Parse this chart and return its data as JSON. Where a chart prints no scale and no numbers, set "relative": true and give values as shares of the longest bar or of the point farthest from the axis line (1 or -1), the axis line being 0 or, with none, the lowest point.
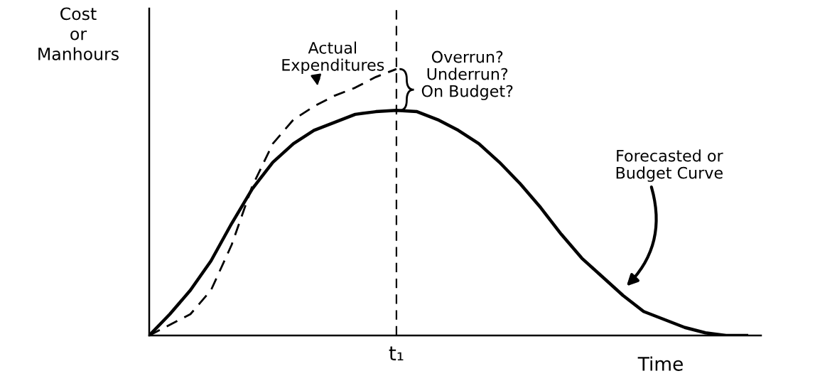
{
  "chart_data": {
    "type": "line",
    "relative": true,
    "ylabel": "Cost\nor\nManhours",
    "xlabel": "Time",
    "categories": [
      null,
      null,
      null,
      null,
      null,
      null,
      null,
      null,
      null,
      null,
      null,
      null,
      null,
      null,
      null,
      null,
      null,
      null,
      null,
      null,
      null,
      null,
      null,
      null,
      null,
      null,
      null,
      null,
      null,
      null
    ],
    "series": [
      {
        "color": "#000000",
        "line_style": "solid",
        "values": [
          0,
          0.08,
          0.17,
          0.28,
          0.42,
          0.55,
          0.65,
          0.72,
          0.77,
          0.8,
          0.83,
          0.84,
          0.845,
          0.84,
          0.81,
          0.77,
          0.72,
          0.65,
          0.57,
          0.48,
          0.38,
          0.29,
          0.22,
          0.15,
          0.09,
          0.06,
          0.03,
          0.01,
          0,
          0
        ]
      },
      {
        "color": "#000000",
        "line_style": "dashed",
        "values": [
          0,
          0.04,
          0.08,
          0.17,
          0.34,
          0.56,
          0.72,
          0.81,
          0.86,
          0.9,
          0.93,
          0.97,
          1.0,
          null,
          null,
          null,
          null,
          null,
          null,
          null,
          null,
          null,
          null,
          null,
          null,
          null,
          null,
          null,
          null,
          null
        ]
      }
    ],
    "annotations": [
      "Actual\nExpenditures",
      "Overrun?\nUnderrun?\nOn Budget?",
      "Forecasted or\nBudget Curve",
      "t₁"
    ],
    "marker": "none"
  }
}
